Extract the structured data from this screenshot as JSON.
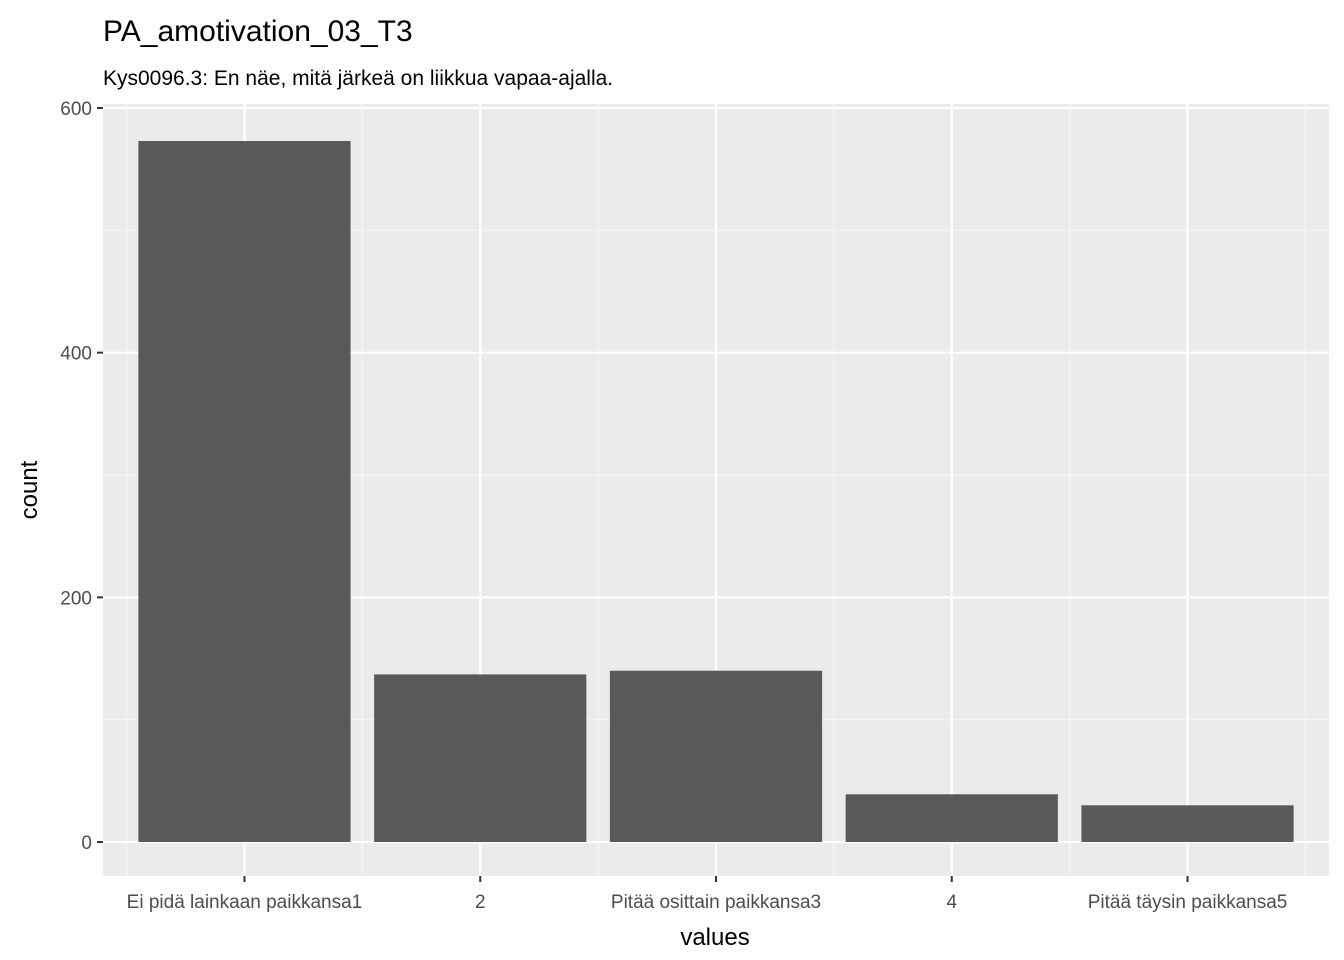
{
  "chart_data": {
    "type": "bar",
    "title": "PA_amotivation_03_T3",
    "subtitle": "Kys0096.3: En näe, mitä järkeä on liikkua vapaa-ajalla.",
    "xlabel": "values",
    "ylabel": "count",
    "categories": [
      "Ei pidä lainkaan paikkansa1",
      "2",
      "Pitää osittain paikkansa3",
      "4",
      "Pitää täysin paikkansa5"
    ],
    "values": [
      573,
      137,
      140,
      39,
      30
    ],
    "ylim": [
      0,
      600
    ],
    "yticks": [
      0,
      200,
      400,
      600
    ],
    "grid": true,
    "legend": "none",
    "colors": {
      "panel_background": "#ebebeb",
      "grid_major": "#ffffff",
      "grid_minor": "#f5f5f5",
      "bar_fill": "#595959",
      "tick_text": "#4d4d4d",
      "tick_mark": "#333333",
      "text": "#000000"
    }
  }
}
